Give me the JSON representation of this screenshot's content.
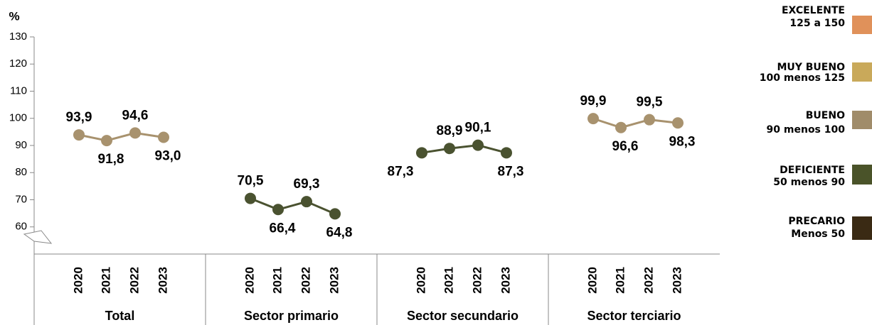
{
  "chart_data": {
    "type": "line",
    "y_label": "%",
    "categories": [
      "2020",
      "2021",
      "2022",
      "2023"
    ],
    "series": [
      {
        "name": "Total",
        "color": "#a8926e",
        "values": [
          93.9,
          91.8,
          94.6,
          93.0
        ],
        "value_labels": [
          "93,9",
          "91,8",
          "94,6",
          "93,0"
        ]
      },
      {
        "name": "Sector primario",
        "color": "#4a5230",
        "values": [
          70.5,
          66.4,
          69.3,
          64.8
        ],
        "value_labels": [
          "70,5",
          "66,4",
          "69,3",
          "64,8"
        ]
      },
      {
        "name": "Sector secundario",
        "color": "#4a5230",
        "values": [
          87.3,
          88.9,
          90.1,
          87.3
        ],
        "value_labels": [
          "87,3",
          "88,9",
          "90,1",
          "87,3"
        ]
      },
      {
        "name": "Sector terciario",
        "color": "#a8926e",
        "values": [
          99.9,
          96.6,
          99.5,
          98.3
        ],
        "value_labels": [
          "99,9",
          "96,6",
          "99,5",
          "98,3"
        ]
      }
    ],
    "ylim": [
      50,
      130
    ],
    "yticks": [
      60,
      70,
      80,
      90,
      100,
      110,
      120,
      130
    ],
    "legend": [
      {
        "label": "EXCELENTE",
        "range": "125 a 150",
        "color": "#e0915a"
      },
      {
        "label": "MUY BUENO",
        "range": "100 menos 125",
        "color": "#c9a95a"
      },
      {
        "label": "BUENO",
        "range": "90 menos 100",
        "color": "#a08c6a"
      },
      {
        "label": "DEFICIENTE",
        "range": "50 menos 90",
        "color": "#4a5329"
      },
      {
        "label": "PRECARIO",
        "range": "Menos 50",
        "color": "#3a2a14"
      }
    ]
  }
}
